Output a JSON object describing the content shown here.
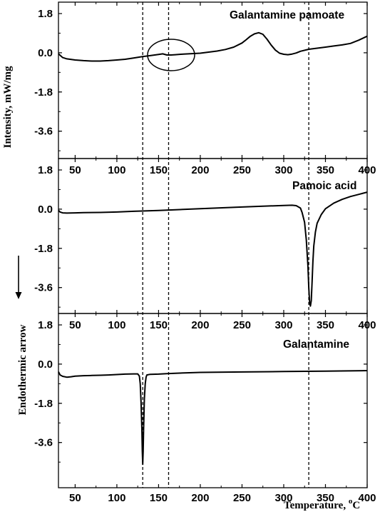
{
  "chart_data": {
    "type": "line",
    "ylabel": "Intensity, mW/mg",
    "ylabel_secondary": "Endothermic arrow",
    "xlabel": {
      "text": "Temperature, ",
      "superscript": "o",
      "unit": "C"
    },
    "xlim": [
      30,
      400
    ],
    "ylim": [
      -5.0,
      2.3
    ],
    "xticks": [
      "50",
      "100",
      "150",
      "200",
      "250",
      "300",
      "350",
      "400"
    ],
    "yticks": [
      "1.8",
      "0.0",
      "-1.8",
      "-3.6"
    ],
    "reference_lines_x": [
      131,
      162,
      330
    ],
    "highlight_ellipse": {
      "cx": 165,
      "cy": -0.1
    },
    "panels": [
      {
        "name": "Galantamine pamoate",
        "x_tick_labels_shown": false,
        "x": [
          30,
          35,
          40,
          50,
          60,
          70,
          80,
          90,
          100,
          110,
          120,
          130,
          140,
          150,
          155,
          160,
          165,
          170,
          180,
          190,
          200,
          210,
          220,
          230,
          240,
          250,
          255,
          260,
          265,
          270,
          275,
          280,
          285,
          290,
          295,
          300,
          305,
          310,
          315,
          320,
          330,
          340,
          350,
          360,
          370,
          380,
          390,
          400
        ],
        "y": [
          -0.05,
          -0.22,
          -0.28,
          -0.33,
          -0.36,
          -0.38,
          -0.38,
          -0.36,
          -0.33,
          -0.3,
          -0.24,
          -0.18,
          -0.13,
          -0.08,
          -0.05,
          -0.1,
          -0.1,
          -0.09,
          -0.06,
          -0.04,
          -0.02,
          0.03,
          0.08,
          0.15,
          0.26,
          0.45,
          0.6,
          0.76,
          0.87,
          0.92,
          0.85,
          0.62,
          0.35,
          0.12,
          -0.02,
          -0.07,
          -0.09,
          -0.06,
          -0.01,
          0.07,
          0.16,
          0.21,
          0.26,
          0.31,
          0.36,
          0.43,
          0.58,
          0.76
        ]
      },
      {
        "name": "Pamoic acid",
        "x_tick_labels_shown": true,
        "x": [
          30,
          32,
          35,
          40,
          50,
          60,
          80,
          100,
          120,
          150,
          200,
          250,
          300,
          310,
          315,
          320,
          322,
          325,
          327,
          329,
          330,
          331,
          332,
          333,
          334,
          335,
          336,
          338,
          340,
          345,
          350,
          360,
          370,
          380,
          390,
          400
        ],
        "y": [
          -0.05,
          -0.13,
          -0.17,
          -0.18,
          -0.17,
          -0.16,
          -0.15,
          -0.13,
          -0.1,
          -0.06,
          0.02,
          0.1,
          0.17,
          0.18,
          0.16,
          0.05,
          -0.15,
          -0.6,
          -1.4,
          -2.6,
          -3.6,
          -4.3,
          -4.45,
          -4.2,
          -3.3,
          -2.4,
          -1.7,
          -1.05,
          -0.65,
          -0.25,
          0.02,
          0.28,
          0.45,
          0.58,
          0.68,
          0.78
        ]
      },
      {
        "name": "Galantamine",
        "x_tick_labels_shown": true,
        "x": [
          30,
          32,
          35,
          40,
          45,
          50,
          60,
          70,
          80,
          90,
          100,
          110,
          120,
          125,
          127,
          128,
          129,
          130,
          130.5,
          131,
          131.5,
          132,
          133,
          134,
          135,
          136,
          140,
          150,
          160,
          170,
          200,
          250,
          300,
          350,
          400
        ],
        "y": [
          -0.35,
          -0.5,
          -0.56,
          -0.6,
          -0.58,
          -0.55,
          -0.53,
          -0.52,
          -0.51,
          -0.5,
          -0.48,
          -0.46,
          -0.45,
          -0.45,
          -0.55,
          -0.9,
          -1.8,
          -3.0,
          -4.0,
          -4.6,
          -4.0,
          -3.0,
          -1.6,
          -0.9,
          -0.6,
          -0.5,
          -0.47,
          -0.46,
          -0.44,
          -0.42,
          -0.38,
          -0.36,
          -0.34,
          -0.32,
          -0.3
        ]
      }
    ]
  }
}
